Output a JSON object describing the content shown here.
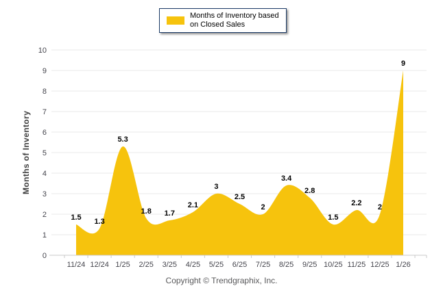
{
  "window": {
    "background": "#FFFFFF"
  },
  "legend": {
    "line1": "Months of Inventory based",
    "line2": "on Closed Sales"
  },
  "footer": {
    "copyright": "Copyright © Trendgraphix, Inc."
  },
  "colors": {
    "area": "#F6C30D",
    "legend_border": "#1B3A66",
    "grid": "#E9E9E9",
    "axis_line": "#C9C9C9",
    "tick_text": "#44444C",
    "data_label": "#000000",
    "footer_text": "#58585A",
    "y_title_text": "#404040"
  },
  "chart_data": {
    "type": "area",
    "title": "",
    "series_name": "Months of Inventory based on Closed Sales",
    "categories": [
      "11/24",
      "12/24",
      "1/25",
      "2/25",
      "3/25",
      "4/25",
      "5/25",
      "6/25",
      "7/25",
      "8/25",
      "9/25",
      "10/25",
      "11/25",
      "12/25",
      "1/26"
    ],
    "values": [
      1.5,
      1.3,
      5.3,
      1.8,
      1.7,
      2.1,
      3,
      2.5,
      2,
      3.4,
      2.8,
      1.5,
      2.2,
      2,
      9
    ],
    "point_labels": [
      "1.5",
      "1.3",
      "5.3",
      "1.8",
      "1.7",
      "2.1",
      "3",
      "2.5",
      "2",
      "3.4",
      "2.8",
      "1.5",
      "2.2",
      "2",
      "9"
    ],
    "xlabel": "",
    "ylabel": "Months of Inventory",
    "ylim": [
      0,
      10
    ],
    "ytick_interval": 1,
    "grid": true,
    "legend_position": "top-center",
    "smooth": true
  }
}
